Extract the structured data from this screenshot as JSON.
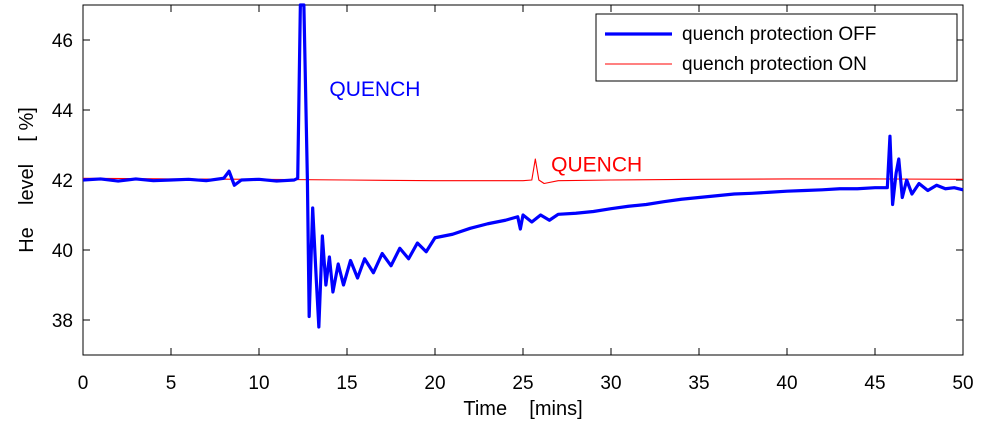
{
  "chart_data": {
    "type": "line",
    "title": "",
    "xlabel": "Time    [mins]",
    "ylabel": "He    level    [ %]",
    "xlim": [
      0,
      50
    ],
    "ylim": [
      37,
      47
    ],
    "x_ticks": [
      0,
      5,
      10,
      15,
      20,
      25,
      30,
      35,
      40,
      45,
      50
    ],
    "y_ticks": [
      38,
      40,
      42,
      44,
      46
    ],
    "grid": false,
    "legend_position": "top-right",
    "series": [
      {
        "name": "quench protection OFF",
        "color": "#0000ff",
        "line_width": "thick",
        "points": [
          [
            0,
            42.0
          ],
          [
            1,
            42.03
          ],
          [
            2,
            41.97
          ],
          [
            3,
            42.03
          ],
          [
            4,
            41.98
          ],
          [
            5,
            42.0
          ],
          [
            6,
            42.02
          ],
          [
            7,
            41.98
          ],
          [
            8,
            42.05
          ],
          [
            8.3,
            42.25
          ],
          [
            8.6,
            41.85
          ],
          [
            9,
            42.0
          ],
          [
            10,
            42.02
          ],
          [
            11,
            41.97
          ],
          [
            12,
            42.0
          ],
          [
            12.2,
            42.05
          ],
          [
            12.35,
            47.0
          ],
          [
            12.55,
            47.0
          ],
          [
            12.75,
            42.0
          ],
          [
            12.85,
            38.1
          ],
          [
            13.05,
            41.2
          ],
          [
            13.25,
            39.2
          ],
          [
            13.4,
            37.8
          ],
          [
            13.6,
            40.4
          ],
          [
            13.8,
            39.0
          ],
          [
            14.0,
            39.8
          ],
          [
            14.2,
            38.8
          ],
          [
            14.5,
            39.6
          ],
          [
            14.8,
            39.0
          ],
          [
            15.2,
            39.7
          ],
          [
            15.6,
            39.2
          ],
          [
            16,
            39.75
          ],
          [
            16.5,
            39.35
          ],
          [
            17,
            39.9
          ],
          [
            17.5,
            39.55
          ],
          [
            18,
            40.05
          ],
          [
            18.5,
            39.75
          ],
          [
            19,
            40.2
          ],
          [
            19.5,
            39.95
          ],
          [
            20,
            40.35
          ],
          [
            21,
            40.45
          ],
          [
            22,
            40.62
          ],
          [
            23,
            40.75
          ],
          [
            24,
            40.85
          ],
          [
            24.7,
            40.95
          ],
          [
            24.85,
            40.6
          ],
          [
            25.0,
            41.0
          ],
          [
            25.5,
            40.8
          ],
          [
            26,
            41.0
          ],
          [
            26.5,
            40.85
          ],
          [
            27,
            41.02
          ],
          [
            28,
            41.05
          ],
          [
            29,
            41.1
          ],
          [
            30,
            41.18
          ],
          [
            31,
            41.25
          ],
          [
            32,
            41.3
          ],
          [
            33,
            41.38
          ],
          [
            34,
            41.45
          ],
          [
            35,
            41.5
          ],
          [
            36,
            41.55
          ],
          [
            37,
            41.6
          ],
          [
            38,
            41.62
          ],
          [
            39,
            41.65
          ],
          [
            40,
            41.68
          ],
          [
            41,
            41.7
          ],
          [
            42,
            41.72
          ],
          [
            43,
            41.75
          ],
          [
            44,
            41.75
          ],
          [
            45,
            41.78
          ],
          [
            45.7,
            41.78
          ],
          [
            45.85,
            43.25
          ],
          [
            46.0,
            41.3
          ],
          [
            46.2,
            42.2
          ],
          [
            46.35,
            42.6
          ],
          [
            46.55,
            41.5
          ],
          [
            46.8,
            42.0
          ],
          [
            47.1,
            41.6
          ],
          [
            47.5,
            41.9
          ],
          [
            48,
            41.7
          ],
          [
            48.5,
            41.85
          ],
          [
            49,
            41.75
          ],
          [
            49.5,
            41.78
          ],
          [
            50,
            41.72
          ]
        ]
      },
      {
        "name": "quench protection ON",
        "color": "#ff0000",
        "line_width": "thin",
        "points": [
          [
            0,
            42.05
          ],
          [
            5,
            42.03
          ],
          [
            10,
            42.02
          ],
          [
            15,
            42.0
          ],
          [
            20,
            41.98
          ],
          [
            25,
            41.98
          ],
          [
            25.5,
            42.0
          ],
          [
            25.7,
            42.6
          ],
          [
            25.9,
            42.0
          ],
          [
            26.2,
            41.9
          ],
          [
            27,
            41.98
          ],
          [
            30,
            42.0
          ],
          [
            35,
            42.02
          ],
          [
            40,
            42.03
          ],
          [
            45,
            42.03
          ],
          [
            50,
            42.02
          ]
        ]
      }
    ],
    "annotations": [
      {
        "text": "QUENCH",
        "color": "#0000ff",
        "x": 14.0,
        "y": 44.4
      },
      {
        "text": "QUENCH",
        "color": "#ff0000",
        "x": 26.6,
        "y": 42.25
      }
    ]
  }
}
